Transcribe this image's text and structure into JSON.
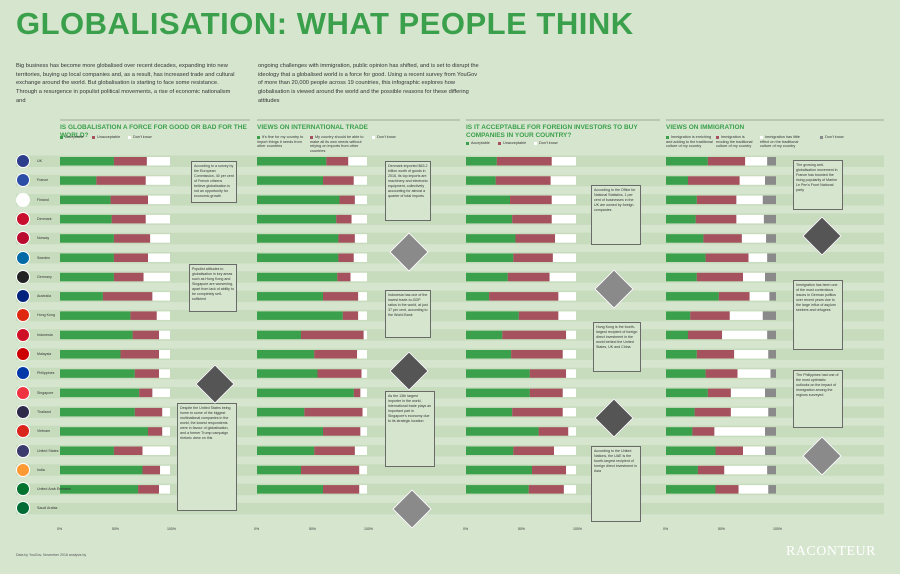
{
  "title": "GLOBALISATION: WHAT PEOPLE THINK",
  "intro_1": "Big business has become more globalised over recent decades, expanding into new territories, buying up local companies and, as a result, has increased trade and cultural exchange around the world. But globalisation is starting to face some resistance. Through a resurgence in populist political movements, a rise of economic nationalism and",
  "intro_2": "ongoing challenges with immigration, public opinion has shifted, and is set to disrupt the ideology that a globalised world is a force for good. Using a recent survey from YouGov of more than 20,000 people across 19 countries, this infographic explores how globalisation is viewed around the world and the possible reasons for these differing attitudes",
  "sections": [
    {
      "title": "IS GLOBALISATION A FORCE FOR GOOD OR BAD FOR THE WORLD?",
      "legend": [
        "Acceptable",
        "Unacceptable",
        "Don't know"
      ]
    },
    {
      "title": "VIEWS ON INTERNATIONAL TRADE",
      "legend": [
        "It's fine for my country to import things it needs from other countries",
        "My country should be able to make all its own needs without relying on imports from other countries",
        "Don't know"
      ]
    },
    {
      "title": "IS IT ACCEPTABLE FOR FOREIGN INVESTORS TO BUY COMPANIES IN YOUR COUNTRY?",
      "legend": [
        "Acceptable",
        "Unacceptable",
        "Don't know"
      ]
    },
    {
      "title": "VIEWS ON IMMIGRATION",
      "legend": [
        "Immigration is enriching and adding to the traditional culture of my country",
        "Immigration is eroding the traditional culture of my country",
        "Immigration has little effect on the traditional culture of my country",
        "Don't know"
      ]
    }
  ],
  "colors": {
    "green": "#3aa04b",
    "red": "#a5525e",
    "white": "#ffffff",
    "grey": "#8a8a8a",
    "band": "#c7dcbd",
    "bg": "#d6e5ce"
  },
  "countries": [
    {
      "name": "UK",
      "flag": "flag-uk-icon",
      "color": "#2d3e8c"
    },
    {
      "name": "France",
      "flag": "flag-france-icon",
      "color": "#2d4ea6"
    },
    {
      "name": "Finland",
      "flag": "flag-finland-icon",
      "color": "#ffffff"
    },
    {
      "name": "Denmark",
      "flag": "flag-denmark-icon",
      "color": "#c8102e"
    },
    {
      "name": "Norway",
      "flag": "flag-norway-icon",
      "color": "#ba0c2f"
    },
    {
      "name": "Sweden",
      "flag": "flag-sweden-icon",
      "color": "#006aa7"
    },
    {
      "name": "Germany",
      "flag": "flag-germany-icon",
      "color": "#222222"
    },
    {
      "name": "Australia",
      "flag": "flag-australia-icon",
      "color": "#00247d"
    },
    {
      "name": "Hong Kong",
      "flag": "flag-hong-kong-icon",
      "color": "#de2910"
    },
    {
      "name": "Indonesia",
      "flag": "flag-indonesia-icon",
      "color": "#ce1126"
    },
    {
      "name": "Malaysia",
      "flag": "flag-malaysia-icon",
      "color": "#cc0000"
    },
    {
      "name": "Philippines",
      "flag": "flag-philippines-icon",
      "color": "#0038a8"
    },
    {
      "name": "Singapore",
      "flag": "flag-singapore-icon",
      "color": "#ef3340"
    },
    {
      "name": "Thailand",
      "flag": "flag-thailand-icon",
      "color": "#2d2a4a"
    },
    {
      "name": "Vietnam",
      "flag": "flag-vietnam-icon",
      "color": "#da251d"
    },
    {
      "name": "United States",
      "flag": "flag-usa-icon",
      "color": "#3c3b6e"
    },
    {
      "name": "India",
      "flag": "flag-india-icon",
      "color": "#ff9933"
    },
    {
      "name": "United Arab Emirates",
      "flag": "flag-uae-icon",
      "color": "#00732f"
    },
    {
      "name": "Saudi Arabia",
      "flag": "flag-saudi-arabia-icon",
      "color": "#006c35"
    }
  ],
  "chart_data": [
    {
      "type": "bar",
      "title": "IS GLOBALISATION A FORCE FOR GOOD OR BAD FOR THE WORLD?",
      "categories": [
        "UK",
        "France",
        "Finland",
        "Denmark",
        "Norway",
        "Sweden",
        "Germany",
        "Australia",
        "Hong Kong",
        "Indonesia",
        "Malaysia",
        "Philippines",
        "Singapore",
        "Thailand",
        "Vietnam",
        "United States",
        "India",
        "United Arab Emirates",
        "Saudi Arabia"
      ],
      "series": [
        {
          "name": "Acceptable",
          "values": [
            49,
            33,
            46,
            47,
            49,
            49,
            49,
            39,
            64,
            66,
            55,
            68,
            72,
            68,
            80,
            49,
            75,
            71,
            0
          ]
        },
        {
          "name": "Unacceptable",
          "values": [
            30,
            45,
            34,
            31,
            33,
            31,
            27,
            45,
            24,
            24,
            35,
            22,
            12,
            25,
            13,
            26,
            16,
            19,
            0
          ]
        },
        {
          "name": "Don't know",
          "values": [
            21,
            22,
            20,
            22,
            18,
            20,
            24,
            16,
            12,
            10,
            10,
            10,
            16,
            7,
            7,
            25,
            9,
            10,
            0
          ]
        }
      ],
      "ylim": [
        0,
        100
      ]
    },
    {
      "type": "bar",
      "title": "VIEWS ON INTERNATIONAL TRADE",
      "categories": [
        "UK",
        "France",
        "Finland",
        "Denmark",
        "Norway",
        "Sweden",
        "Germany",
        "Australia",
        "Hong Kong",
        "Indonesia",
        "Malaysia",
        "Philippines",
        "Singapore",
        "Thailand",
        "Vietnam",
        "United States",
        "India",
        "United Arab Emirates",
        "Saudi Arabia"
      ],
      "series": [
        {
          "name": "It's fine for my country to import things it needs from other countries",
          "values": [
            63,
            60,
            75,
            72,
            74,
            74,
            73,
            60,
            78,
            40,
            52,
            55,
            88,
            43,
            60,
            52,
            40,
            60,
            0
          ]
        },
        {
          "name": "My country should be able to make all its own needs without relying on imports from other countries",
          "values": [
            20,
            28,
            14,
            14,
            15,
            14,
            12,
            32,
            14,
            57,
            39,
            40,
            6,
            53,
            34,
            37,
            53,
            33,
            0
          ]
        },
        {
          "name": "Don't know",
          "values": [
            17,
            12,
            11,
            14,
            11,
            12,
            15,
            8,
            8,
            3,
            9,
            5,
            6,
            4,
            6,
            11,
            7,
            7,
            0
          ]
        }
      ],
      "ylim": [
        0,
        100
      ]
    },
    {
      "type": "bar",
      "title": "IS IT ACCEPTABLE FOR FOREIGN INVESTORS TO BUY COMPANIES IN YOUR COUNTRY?",
      "categories": [
        "UK",
        "France",
        "Finland",
        "Denmark",
        "Norway",
        "Sweden",
        "Germany",
        "Australia",
        "Hong Kong",
        "Indonesia",
        "Malaysia",
        "Philippines",
        "Singapore",
        "Thailand",
        "Vietnam",
        "United States",
        "India",
        "United Arab Emirates",
        "Saudi Arabia"
      ],
      "series": [
        {
          "name": "Acceptable",
          "values": [
            28,
            27,
            40,
            42,
            45,
            43,
            38,
            21,
            48,
            33,
            41,
            58,
            58,
            42,
            66,
            43,
            60,
            57,
            0
          ]
        },
        {
          "name": "Unacceptable",
          "values": [
            50,
            50,
            38,
            36,
            36,
            36,
            38,
            63,
            36,
            58,
            47,
            33,
            30,
            46,
            27,
            37,
            31,
            32,
            0
          ]
        },
        {
          "name": "Don't know",
          "values": [
            22,
            23,
            22,
            22,
            19,
            21,
            24,
            16,
            16,
            9,
            12,
            9,
            12,
            12,
            7,
            20,
            9,
            11,
            0
          ]
        }
      ],
      "ylim": [
        0,
        100
      ]
    },
    {
      "type": "bar",
      "title": "VIEWS ON IMMIGRATION",
      "categories": [
        "UK",
        "France",
        "Finland",
        "Denmark",
        "Norway",
        "Sweden",
        "Germany",
        "Australia",
        "Hong Kong",
        "Indonesia",
        "Malaysia",
        "Philippines",
        "Singapore",
        "Thailand",
        "Vietnam",
        "United States",
        "India",
        "United Arab Emirates",
        "Saudi Arabia"
      ],
      "series": [
        {
          "name": "Immigration is enriching and adding to the traditional culture of my country",
          "values": [
            38,
            20,
            28,
            27,
            34,
            36,
            28,
            48,
            22,
            20,
            28,
            36,
            38,
            26,
            24,
            45,
            29,
            45,
            0
          ]
        },
        {
          "name": "Immigration is eroding the traditional culture of my country",
          "values": [
            34,
            47,
            36,
            37,
            35,
            39,
            42,
            28,
            36,
            31,
            34,
            29,
            21,
            33,
            20,
            25,
            24,
            21,
            0
          ]
        },
        {
          "name": "Immigration has little effect on the traditional culture of my country",
          "values": [
            20,
            23,
            24,
            25,
            22,
            17,
            20,
            18,
            30,
            41,
            31,
            30,
            31,
            34,
            46,
            20,
            39,
            27,
            0
          ]
        },
        {
          "name": "Don't know",
          "values": [
            8,
            10,
            12,
            11,
            9,
            8,
            10,
            6,
            12,
            8,
            7,
            5,
            10,
            7,
            10,
            10,
            8,
            7,
            0
          ]
        }
      ],
      "ylim": [
        0,
        100
      ]
    }
  ],
  "axis_ticks": [
    "0%",
    "50%",
    "100%"
  ],
  "annotations": [
    "According to a survey by the European Commission, 40 per cent of French citizens believe globalisation is not an opportunity for economic growth",
    "Populist attitudes to globalisation in key areas such as Hong Kong and Singapore are worsening, apart from lack of ability to be completely self-sufficient",
    "Despite the United States being home to some of the biggest multinational companies in the world, the lowest respondents were in favour of globalisation, and a former Trump campaign rhetoric drew on this",
    "Denmark imported $63.2 billion worth of goods in 2016, its top imports are machinery and electronic equipment, collectively accounting for almost a quarter of total imports",
    "Indonesia has one of the lowest trade-to-GDP ratios in the world, at just 37 per cent, according to the World Bank",
    "As the 13th largest importer in the world, international trade plays an important part in Singapore's economy due to its strategic location",
    "According to the Office for National Statistics, 1 per cent of businesses in the UK are owned by foreign companies",
    "Hong Kong is the fourth-largest recipient of foreign direct investment in the world behind the United States, UK and China",
    "According to the United Nations, the UAE is the fourth-largest recipient of foreign direct investment in Asia",
    "The growing anti-globalisation movement in France has boosted the rising popularity of Marine Le Pen's Front National party",
    "Immigration has been one of the most contentious issues in German politics over recent years due to the large influx of asylum seekers and refugees",
    "The Philippines had one of the most optimistic outlooks on the impact of immigration among the regions surveyed"
  ],
  "footnote": "Data by YouGov, November 2016 analysis by",
  "brand": "RACONTEUR"
}
